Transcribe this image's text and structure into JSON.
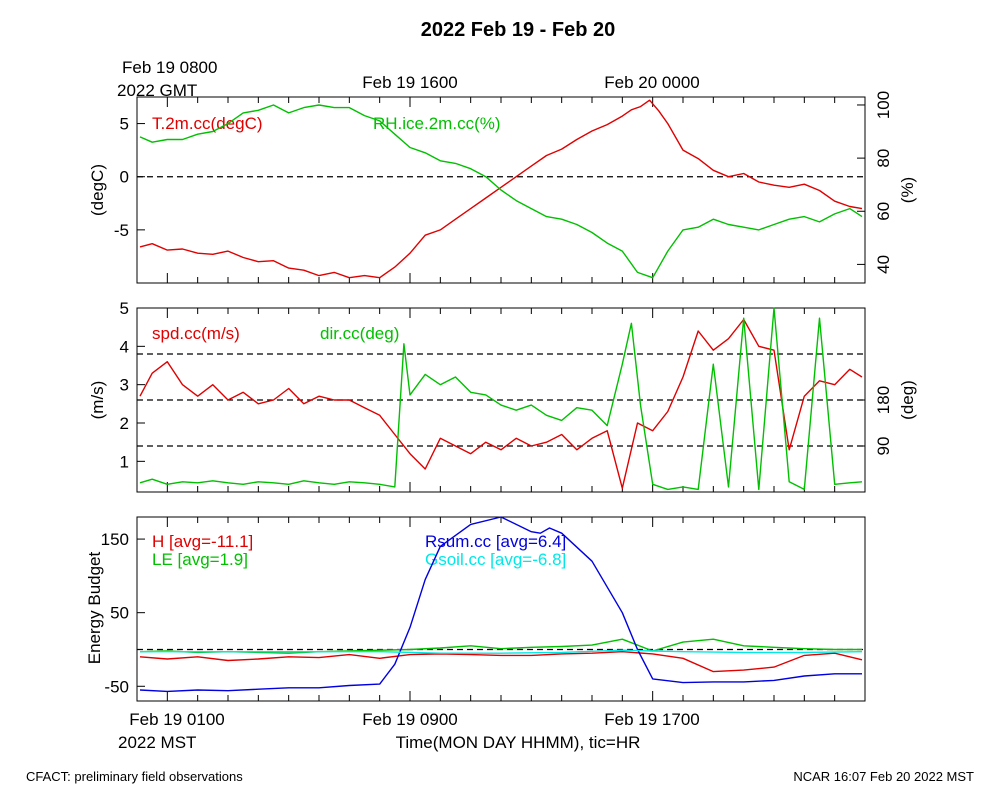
{
  "title": "2022 Feb 19 - Feb 20",
  "gmt_start_date": "Feb 19 0800",
  "gmt_label": "2022 GMT",
  "gmt_ticks": [
    "Feb 19 1600",
    "Feb 20 0000"
  ],
  "mst_ticks": [
    "Feb 19 0100",
    "Feb 19 0900",
    "Feb 19 1700"
  ],
  "mst_label": "2022 MST",
  "x_axis_label": "Time(MON DAY HHMM), tic=HR",
  "footer_left": "CFACT: preliminary field observations",
  "footer_right": "NCAR 16:07 Feb 20 2022 MST",
  "colors": {
    "red": "#e00000",
    "green": "#00c000",
    "blue": "#0000e0",
    "cyan": "#00e8e8"
  },
  "chart_data": [
    {
      "type": "line",
      "x_unit": "hours since Feb 19 0000 MST",
      "xlim": [
        0,
        24
      ],
      "left_ylabel": "(degC)",
      "left_ylim": [
        -10,
        7.5
      ],
      "left_ticks": [
        "5",
        "0",
        "-5"
      ],
      "right_ylabel": "(%)",
      "right_ylim": [
        33,
        103
      ],
      "right_ticks": [
        "100",
        "80",
        "60",
        "40"
      ],
      "reference_lines_left": [
        0
      ],
      "series": [
        {
          "name": "T.2m.cc(degC)",
          "axis": "left",
          "color": "red",
          "x": [
            0.1,
            0.5,
            1,
            1.5,
            2,
            2.5,
            3,
            3.5,
            4,
            4.5,
            5,
            5.5,
            6,
            6.5,
            7,
            7.5,
            8,
            8.5,
            9,
            9.5,
            10,
            10.5,
            11,
            11.5,
            12,
            12.5,
            13,
            13.5,
            14,
            14.5,
            15,
            15.5,
            16,
            16.3,
            16.6,
            16.9,
            17.2,
            17.5,
            18,
            18.5,
            19,
            19.5,
            20,
            20.5,
            21,
            21.5,
            22,
            22.5,
            23,
            23.5,
            23.9
          ],
          "y": [
            -6.6,
            -6.3,
            -6.9,
            -6.8,
            -7.2,
            -7.3,
            -7.0,
            -7.6,
            -8.0,
            -7.9,
            -8.6,
            -8.8,
            -9.3,
            -9.0,
            -9.5,
            -9.3,
            -9.5,
            -8.5,
            -7.2,
            -5.5,
            -5.0,
            -4.0,
            -3.0,
            -2.0,
            -1.0,
            0.0,
            1.0,
            2.0,
            2.6,
            3.5,
            4.3,
            4.9,
            5.7,
            6.3,
            6.6,
            7.2,
            6.2,
            5.0,
            2.5,
            1.7,
            0.6,
            0.0,
            0.3,
            -0.5,
            -0.8,
            -1.0,
            -0.7,
            -1.3,
            -2.3,
            -2.8,
            -3.0
          ]
        },
        {
          "name": "RH.ice.2m.cc(%)",
          "axis": "right",
          "color": "green",
          "x": [
            0.1,
            0.5,
            1,
            1.5,
            2,
            2.5,
            3,
            3.5,
            4,
            4.5,
            5,
            5.5,
            6,
            6.5,
            7,
            7.5,
            8,
            8.5,
            9,
            9.5,
            10,
            10.5,
            11,
            11.5,
            12,
            12.5,
            13,
            13.5,
            14,
            14.5,
            15,
            15.5,
            16,
            16.5,
            17,
            17.5,
            18,
            18.5,
            19,
            19.5,
            20,
            20.5,
            21,
            21.5,
            22,
            22.5,
            23,
            23.5,
            23.9
          ],
          "y": [
            88,
            86,
            87,
            87,
            89,
            90,
            93,
            97,
            98,
            100,
            97,
            99,
            100,
            99,
            99,
            96,
            94,
            89,
            84,
            82,
            79,
            78,
            76,
            73,
            68,
            64,
            61,
            58,
            57,
            55,
            52,
            48,
            45,
            37,
            35,
            45,
            53,
            54,
            57,
            55,
            54,
            53,
            55,
            57,
            58,
            56,
            59,
            61,
            58
          ]
        }
      ]
    },
    {
      "type": "line",
      "x_unit": "hours since Feb 19 0000 MST",
      "xlim": [
        0,
        24
      ],
      "left_ylabel": "(m/s)",
      "left_ylim": [
        0.2,
        5
      ],
      "left_ticks": [
        "5",
        "4",
        "3",
        "2",
        "1"
      ],
      "right_ylabel": "(deg)",
      "right_ylim": [
        0,
        360
      ],
      "right_ticks": [
        "180",
        "90"
      ],
      "reference_lines_right": [
        90,
        180,
        270
      ],
      "series": [
        {
          "name": "spd.cc(m/s)",
          "axis": "left",
          "color": "red",
          "x": [
            0.1,
            0.5,
            1,
            1.5,
            2,
            2.5,
            3,
            3.5,
            4,
            4.5,
            5,
            5.5,
            6,
            6.5,
            7,
            7.5,
            8,
            8.5,
            9,
            9.5,
            10,
            10.5,
            11,
            11.5,
            12,
            12.5,
            13,
            13.5,
            14,
            14.5,
            15,
            15.5,
            16,
            16.5,
            17,
            17.5,
            18,
            18.5,
            19,
            19.5,
            20,
            20.5,
            21,
            21.5,
            22,
            22.5,
            23,
            23.5,
            23.9
          ],
          "y": [
            2.7,
            3.3,
            3.6,
            3.0,
            2.7,
            3.0,
            2.6,
            2.8,
            2.5,
            2.6,
            2.9,
            2.5,
            2.7,
            2.6,
            2.6,
            2.4,
            2.2,
            1.7,
            1.2,
            0.8,
            1.6,
            1.4,
            1.2,
            1.5,
            1.3,
            1.6,
            1.4,
            1.5,
            1.7,
            1.3,
            1.6,
            1.8,
            0.3,
            2.0,
            1.8,
            2.3,
            3.2,
            4.4,
            3.9,
            4.2,
            4.7,
            4.0,
            3.9,
            1.3,
            2.7,
            3.1,
            3.0,
            3.4,
            3.2
          ]
        },
        {
          "name": "dir.cc(deg)",
          "axis": "right",
          "color": "green",
          "x": [
            0.1,
            0.5,
            1,
            1.5,
            2,
            2.5,
            3,
            3.5,
            4,
            4.5,
            5,
            5.5,
            6,
            6.5,
            7,
            7.5,
            8,
            8.5,
            8.8,
            9.0,
            9.5,
            10,
            10.5,
            11,
            11.5,
            12,
            12.5,
            13,
            13.5,
            14,
            14.5,
            15,
            15.5,
            16,
            16.3,
            16.6,
            17,
            17.5,
            18,
            18.5,
            19,
            19.5,
            20,
            20.5,
            21,
            21.5,
            22,
            22.5,
            23,
            23.5,
            23.9
          ],
          "y": [
            18,
            25,
            15,
            20,
            18,
            22,
            18,
            15,
            20,
            18,
            15,
            22,
            18,
            15,
            20,
            18,
            15,
            10,
            290,
            190,
            230,
            210,
            225,
            195,
            190,
            170,
            160,
            170,
            150,
            140,
            165,
            160,
            130,
            250,
            330,
            170,
            15,
            5,
            10,
            5,
            250,
            10,
            340,
            5,
            360,
            20,
            5,
            340,
            15,
            18,
            20
          ]
        }
      ]
    },
    {
      "type": "line",
      "x_unit": "hours since Feb 19 0000 MST",
      "xlim": [
        0,
        24
      ],
      "ylabel": "Energy Budget",
      "ylim": [
        -70,
        180
      ],
      "yticks": [
        "150",
        "50",
        "-50"
      ],
      "reference_lines": [
        0
      ],
      "series": [
        {
          "name": "H [avg=-11.1]",
          "color": "red",
          "x": [
            0.1,
            1,
            2,
            3,
            4,
            5,
            6,
            7,
            8,
            9,
            10,
            11,
            12,
            13,
            14,
            15,
            16,
            17,
            18,
            19,
            20,
            21,
            22,
            23,
            23.9
          ],
          "y": [
            -10,
            -13,
            -10,
            -15,
            -13,
            -10,
            -11,
            -7,
            -12,
            -7,
            -6,
            -7,
            -8,
            -8,
            -6,
            -5,
            -3,
            -6,
            -12,
            -30,
            -28,
            -24,
            -8,
            -5,
            -14
          ]
        },
        {
          "name": "LE [avg=1.9]",
          "color": "green",
          "x": [
            0.1,
            1,
            2,
            3,
            4,
            5,
            6,
            7,
            8,
            9,
            10,
            11,
            12,
            13,
            14,
            15,
            16,
            17,
            18,
            19,
            20,
            21,
            22,
            23,
            23.9
          ],
          "y": [
            -3,
            -2,
            -4,
            -3,
            -4,
            -5,
            -3,
            -2,
            -1,
            0,
            2,
            5,
            1,
            3,
            4,
            6,
            14,
            -2,
            10,
            14,
            5,
            3,
            1,
            0,
            0
          ]
        },
        {
          "name": "Rsum.cc [avg=6.4]",
          "color": "blue",
          "x": [
            0.1,
            1,
            2,
            3,
            4,
            5,
            6,
            7,
            8,
            8.5,
            9,
            9.5,
            10,
            11,
            12,
            13,
            13.3,
            13.6,
            14,
            15,
            16,
            16.5,
            17,
            18,
            19,
            20,
            21,
            22,
            23,
            23.9
          ],
          "y": [
            -55,
            -57,
            -55,
            -56,
            -54,
            -52,
            -52,
            -49,
            -47,
            -20,
            30,
            95,
            140,
            170,
            180,
            160,
            158,
            165,
            158,
            120,
            50,
            0,
            -40,
            -45,
            -44,
            -44,
            -42,
            -36,
            -33,
            -33
          ]
        },
        {
          "name": "Gsoil.cc [avg=-6.8]",
          "color": "cyan",
          "x": [
            0.1,
            2,
            4,
            6,
            8,
            10,
            12,
            14,
            16,
            17,
            18,
            20,
            22,
            23.9
          ],
          "y": [
            -3,
            -3,
            -3,
            -3,
            -3,
            -5,
            -5,
            -4,
            -1,
            -2,
            -3,
            -4,
            -4,
            -3
          ]
        }
      ]
    }
  ]
}
